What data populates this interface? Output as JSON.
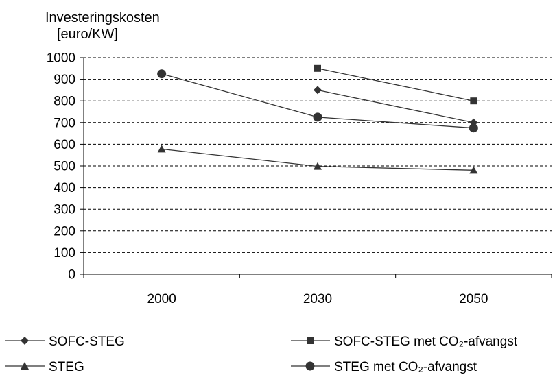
{
  "chart_data": {
    "type": "line",
    "ylabel_lines": [
      "Investeringskosten",
      "[euro/KW]"
    ],
    "categories": [
      "2000",
      "2030",
      "2050"
    ],
    "ylim": [
      0,
      1000
    ],
    "yticks": [
      "0",
      "100",
      "200",
      "300",
      "400",
      "500",
      "600",
      "700",
      "800",
      "900",
      "1000"
    ],
    "grid": true,
    "legend_position": "bottom",
    "series": [
      {
        "name": "SOFC-STEG",
        "marker": "diamond",
        "values": [
          null,
          850,
          700
        ]
      },
      {
        "name": "SOFC-STEG met CO₂-afvangst",
        "marker": "square",
        "values": [
          null,
          950,
          800
        ]
      },
      {
        "name": "STEG",
        "marker": "triangle",
        "values": [
          578,
          498,
          480
        ]
      },
      {
        "name": "STEG met CO₂-afvangst",
        "marker": "circle",
        "values": [
          925,
          725,
          675
        ]
      }
    ]
  }
}
